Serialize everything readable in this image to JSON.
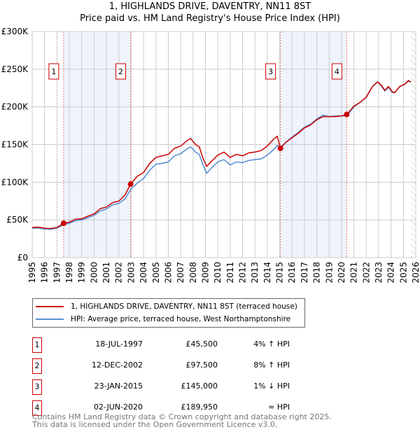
{
  "chart_data": {
    "type": "line",
    "title": "1, HIGHLANDS DRIVE, DAVENTRY, NN11 8ST",
    "subtitle": "Price paid vs. HM Land Registry's House Price Index (HPI)",
    "xlim": [
      1995,
      2026
    ],
    "ylim": [
      0,
      300000
    ],
    "y_ticks": [
      {
        "v": 0,
        "label": "£0"
      },
      {
        "v": 50000,
        "label": "£50K"
      },
      {
        "v": 100000,
        "label": "£100K"
      },
      {
        "v": 150000,
        "label": "£150K"
      },
      {
        "v": 200000,
        "label": "£200K"
      },
      {
        "v": 250000,
        "label": "£250K"
      },
      {
        "v": 300000,
        "label": "£300K"
      }
    ],
    "x_ticks": [
      "1995",
      "1996",
      "1997",
      "1998",
      "1999",
      "2000",
      "2001",
      "2002",
      "2003",
      "2004",
      "2005",
      "2006",
      "2007",
      "2008",
      "2009",
      "2010",
      "2011",
      "2012",
      "2013",
      "2014",
      "2015",
      "2016",
      "2017",
      "2018",
      "2019",
      "2020",
      "2021",
      "2022",
      "2023",
      "2024",
      "2025",
      "2026"
    ],
    "grid": true,
    "shaded_ranges": [
      [
        1997.54,
        2002.95
      ],
      [
        2015.06,
        2020.42
      ]
    ],
    "hatched_from": 2025.6,
    "series": [
      {
        "name": "1, HIGHLANDS DRIVE, DAVENTRY, NN11 8ST (terraced house)",
        "color": "#cc0000",
        "x": [
          1995,
          1995.5,
          1996,
          1996.5,
          1997,
          1997.54,
          1998,
          1998.5,
          1999,
          1999.5,
          2000,
          2000.5,
          2001,
          2001.5,
          2002,
          2002.5,
          2002.95,
          2003.5,
          2004,
          2004.5,
          2005,
          2005.5,
          2006,
          2006.5,
          2007,
          2007.5,
          2007.8,
          2008.2,
          2008.5,
          2008.8,
          2009.1,
          2009.5,
          2010,
          2010.5,
          2011,
          2011.5,
          2012,
          2012.5,
          2013,
          2013.5,
          2014,
          2014.5,
          2014.8,
          2015.06,
          2015.5,
          2016,
          2016.5,
          2017,
          2017.5,
          2018,
          2018.5,
          2019,
          2019.5,
          2020,
          2020.42,
          2021,
          2021.5,
          2022,
          2022.5,
          2022.9,
          2023.2,
          2023.5,
          2023.8,
          2024.1,
          2024.3,
          2024.7,
          2025.1,
          2025.4,
          2025.6
        ],
        "y": [
          40000,
          40500,
          39000,
          38500,
          40000,
          45500,
          47000,
          51000,
          51500,
          55000,
          58000,
          65000,
          67000,
          73000,
          75000,
          83000,
          97500,
          108000,
          113000,
          125000,
          133000,
          135000,
          137000,
          145000,
          148000,
          155000,
          158000,
          150000,
          147000,
          132000,
          121000,
          128000,
          136000,
          140000,
          133000,
          137000,
          135000,
          139000,
          140000,
          142000,
          148000,
          157000,
          161000,
          145000,
          153000,
          159000,
          165000,
          172000,
          176000,
          183000,
          187000,
          187000,
          187000,
          188000,
          189950,
          201000,
          206000,
          213000,
          227000,
          233000,
          229000,
          222000,
          227000,
          220000,
          219000,
          227000,
          230000,
          235000,
          233000
        ]
      },
      {
        "name": "HPI: Average price, terraced house, West Northamptonshire",
        "color": "#5b8fd4",
        "x": [
          1995,
          1995.5,
          1996,
          1996.5,
          1997,
          1997.54,
          1998,
          1998.5,
          1999,
          1999.5,
          2000,
          2000.5,
          2001,
          2001.5,
          2002,
          2002.5,
          2002.95,
          2003.5,
          2004,
          2004.5,
          2005,
          2005.5,
          2006,
          2006.5,
          2007,
          2007.5,
          2007.8,
          2008.2,
          2008.5,
          2008.8,
          2009.1,
          2009.5,
          2010,
          2010.5,
          2011,
          2011.5,
          2012,
          2012.5,
          2013,
          2013.5,
          2014,
          2014.5,
          2014.8,
          2015.06,
          2015.5,
          2016,
          2016.5,
          2017,
          2017.5,
          2018,
          2018.5,
          2019,
          2019.5,
          2020,
          2020.42,
          2021,
          2021.5,
          2022,
          2022.5,
          2022.9,
          2023.2,
          2023.5,
          2023.8,
          2024.1,
          2024.3,
          2024.7,
          2025.1,
          2025.4,
          2025.6
        ],
        "y": [
          39000,
          39000,
          38000,
          37500,
          39000,
          43500,
          45500,
          49000,
          50000,
          53000,
          56000,
          62000,
          64500,
          70000,
          72000,
          78000,
          90000,
          99000,
          105000,
          116000,
          124000,
          125000,
          127000,
          135000,
          138000,
          144000,
          147000,
          140000,
          137000,
          123000,
          112000,
          119000,
          127000,
          130000,
          123000,
          127000,
          126000,
          129000,
          130000,
          131000,
          136000,
          143000,
          149000,
          146000,
          153000,
          160000,
          166000,
          173000,
          177000,
          184000,
          189000,
          187000,
          188000,
          188000,
          188000,
          200000,
          206000,
          213000,
          227000,
          233000,
          228000,
          221000,
          226000,
          219000,
          219000,
          227000,
          230000,
          234000,
          233000
        ]
      }
    ],
    "sales": [
      {
        "n": "1",
        "x": 1997.54,
        "y": 45500
      },
      {
        "n": "2",
        "x": 2002.95,
        "y": 97500
      },
      {
        "n": "3",
        "x": 2015.06,
        "y": 145000
      },
      {
        "n": "4",
        "x": 2020.42,
        "y": 189950
      }
    ]
  },
  "legend": {
    "item1": "1, HIGHLANDS DRIVE, DAVENTRY, NN11 8ST (terraced house)",
    "item2": "HPI: Average price, terraced house, West Northamptonshire"
  },
  "transactions": [
    {
      "n": "1",
      "date": "18-JUL-1997",
      "price": "£45,500",
      "rel": "4% ↑ HPI"
    },
    {
      "n": "2",
      "date": "12-DEC-2002",
      "price": "£97,500",
      "rel": "8% ↑ HPI"
    },
    {
      "n": "3",
      "date": "23-JAN-2015",
      "price": "£145,000",
      "rel": "1% ↓ HPI"
    },
    {
      "n": "4",
      "date": "02-JUN-2020",
      "price": "£189,950",
      "rel": "≈ HPI"
    }
  ],
  "footer": {
    "line1": "Contains HM Land Registry data © Crown copyright and database right 2025.",
    "line2": "This data is licensed under the Open Government Licence v3.0."
  }
}
